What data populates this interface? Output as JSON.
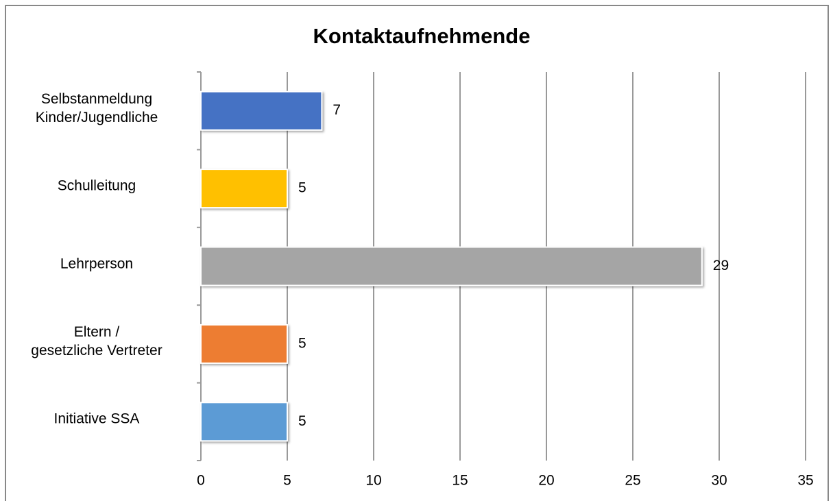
{
  "chart_data": {
    "type": "bar",
    "orientation": "horizontal",
    "title": "Kontaktaufnehmende",
    "categories": [
      "Selbstanmeldung\nKinder/Jugendliche",
      "Schulleitung",
      "Lehrperson",
      "Eltern /\ngesetzliche Vertreter",
      "Initiative SSA"
    ],
    "values": [
      7,
      5,
      29,
      5,
      5
    ],
    "colors": [
      "#4472c4",
      "#ffc000",
      "#a5a5a5",
      "#ed7d31",
      "#5b9bd5"
    ],
    "xlim": [
      0,
      35
    ],
    "xticks": [
      0,
      5,
      10,
      15,
      20,
      25,
      30,
      35
    ],
    "grid": true
  }
}
